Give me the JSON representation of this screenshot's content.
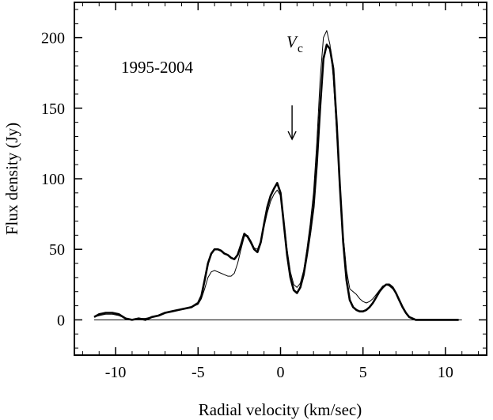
{
  "chart_data": {
    "type": "line",
    "xlabel": "Radial velocity (km/sec)",
    "ylabel": "Flux density (Jy)",
    "xlim": [
      -12.5,
      12.5
    ],
    "ylim": [
      -25,
      225
    ],
    "x_ticks": [
      -10,
      -5,
      0,
      5,
      10
    ],
    "x_tick_labels": [
      "-10",
      "-5",
      "0",
      "5",
      "10"
    ],
    "y_ticks": [
      0,
      50,
      100,
      150,
      200
    ],
    "y_tick_labels": [
      "0",
      "50",
      "100",
      "150",
      "200"
    ],
    "grid": false,
    "baseline": {
      "y": 0,
      "x_range": [
        -11.3,
        11.0
      ]
    },
    "annotations": {
      "period": "1995-2004",
      "vc_symbol": "V",
      "vc_subscript": "c",
      "arrow_x": 0.7,
      "arrow_y_range": [
        152,
        128
      ]
    },
    "series": [
      {
        "style": "thick",
        "x": [
          -11.3,
          -11.0,
          -10.6,
          -10.2,
          -9.8,
          -9.4,
          -9.0,
          -8.6,
          -8.2,
          -7.8,
          -7.4,
          -7.0,
          -6.6,
          -6.2,
          -5.8,
          -5.4,
          -5.0,
          -4.8,
          -4.6,
          -4.4,
          -4.2,
          -4.0,
          -3.8,
          -3.6,
          -3.4,
          -3.2,
          -3.0,
          -2.8,
          -2.6,
          -2.4,
          -2.2,
          -2.0,
          -1.8,
          -1.6,
          -1.4,
          -1.2,
          -1.0,
          -0.8,
          -0.6,
          -0.4,
          -0.2,
          0.0,
          0.2,
          0.4,
          0.6,
          0.8,
          1.0,
          1.2,
          1.4,
          1.6,
          1.8,
          2.0,
          2.2,
          2.4,
          2.6,
          2.8,
          3.0,
          3.2,
          3.4,
          3.6,
          3.8,
          4.0,
          4.2,
          4.4,
          4.6,
          4.8,
          5.0,
          5.2,
          5.4,
          5.6,
          5.8,
          6.0,
          6.2,
          6.4,
          6.6,
          6.8,
          7.0,
          7.2,
          7.4,
          7.6,
          7.8,
          8.0,
          8.2,
          8.4,
          8.6,
          8.8,
          9.0,
          9.4,
          9.8,
          10.2,
          10.6,
          10.8
        ],
        "y": [
          2,
          4,
          5,
          5,
          4,
          1,
          0,
          1,
          0,
          2,
          3,
          5,
          6,
          7,
          8,
          9,
          12,
          17,
          28,
          40,
          47,
          50,
          50,
          49,
          47,
          46,
          44,
          43,
          46,
          53,
          61,
          59,
          55,
          50,
          48,
          55,
          68,
          80,
          88,
          93,
          97,
          90,
          68,
          46,
          30,
          21,
          19,
          23,
          32,
          46,
          62,
          80,
          110,
          150,
          185,
          195,
          192,
          178,
          140,
          95,
          55,
          28,
          14,
          9,
          7,
          6,
          6,
          7,
          9,
          12,
          16,
          20,
          23,
          25,
          25,
          23,
          19,
          14,
          9,
          5,
          2,
          1,
          0,
          0,
          0,
          0,
          0,
          0,
          0,
          0,
          0,
          0
        ]
      },
      {
        "style": "thin",
        "x": [
          -11.3,
          -11.0,
          -10.6,
          -10.2,
          -9.8,
          -9.4,
          -9.0,
          -8.6,
          -8.2,
          -7.8,
          -7.4,
          -7.0,
          -6.6,
          -6.2,
          -5.8,
          -5.4,
          -5.0,
          -4.8,
          -4.6,
          -4.4,
          -4.2,
          -4.0,
          -3.8,
          -3.6,
          -3.4,
          -3.2,
          -3.0,
          -2.8,
          -2.6,
          -2.4,
          -2.2,
          -2.0,
          -1.8,
          -1.6,
          -1.4,
          -1.2,
          -1.0,
          -0.8,
          -0.6,
          -0.4,
          -0.2,
          0.0,
          0.2,
          0.4,
          0.6,
          0.8,
          1.0,
          1.2,
          1.4,
          1.6,
          1.8,
          2.0,
          2.2,
          2.4,
          2.6,
          2.8,
          3.0,
          3.2,
          3.4,
          3.6,
          3.8,
          4.0,
          4.2,
          4.4,
          4.6,
          4.8,
          5.0,
          5.2,
          5.4,
          5.6,
          5.8,
          6.0,
          6.2,
          6.4,
          6.6,
          6.8,
          7.0,
          7.2,
          7.4,
          7.6,
          7.8,
          8.0,
          8.2,
          8.4,
          8.6,
          8.8,
          9.0,
          9.4,
          9.8,
          10.2,
          10.6,
          10.8
        ],
        "y": [
          2,
          3,
          4,
          4,
          3,
          1,
          0,
          1,
          1,
          2,
          3,
          5,
          6,
          7,
          8,
          9,
          11,
          15,
          22,
          30,
          34,
          35,
          34,
          33,
          32,
          31,
          31,
          33,
          40,
          50,
          59,
          60,
          56,
          51,
          50,
          56,
          66,
          76,
          84,
          89,
          92,
          88,
          70,
          50,
          34,
          25,
          23,
          26,
          35,
          50,
          68,
          90,
          125,
          170,
          200,
          205,
          195,
          172,
          133,
          95,
          60,
          35,
          22,
          20,
          18,
          15,
          13,
          12,
          13,
          15,
          18,
          21,
          24,
          25,
          24,
          22,
          19,
          14,
          9,
          5,
          2,
          1,
          0,
          0,
          0,
          0,
          0,
          0,
          0,
          0,
          0,
          0
        ]
      }
    ]
  }
}
